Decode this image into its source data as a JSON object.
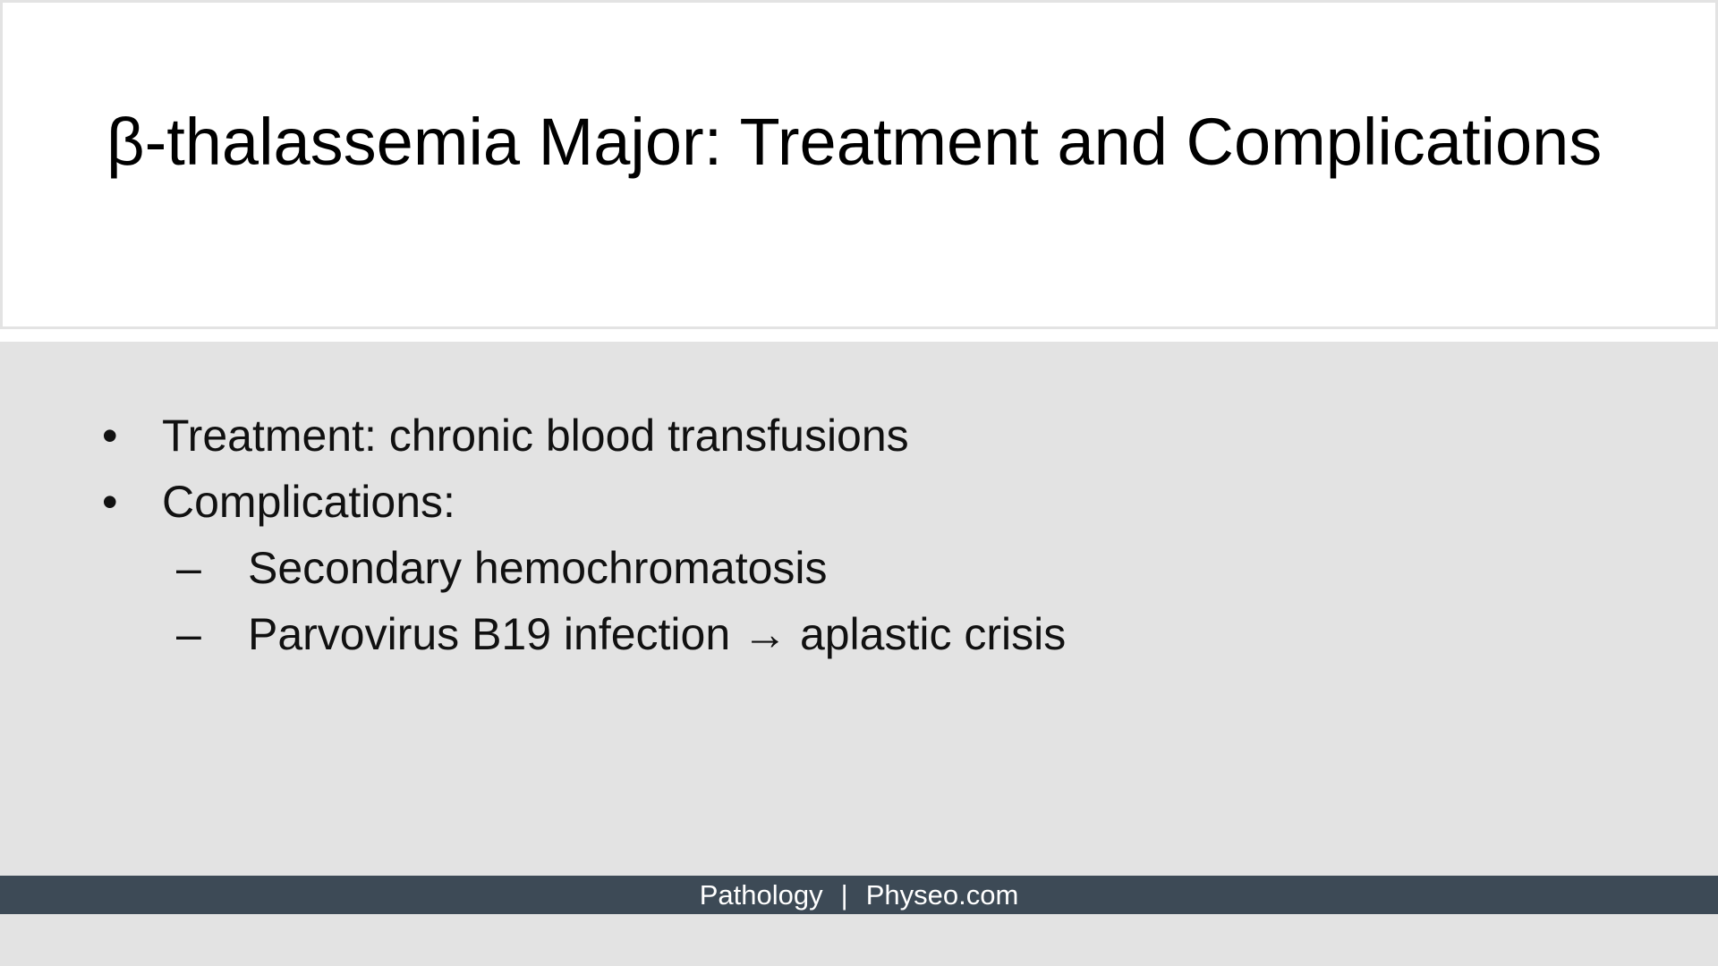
{
  "slide": {
    "title": "β-thalassemia Major: Treatment and Complications",
    "bullets": [
      {
        "marker": "•",
        "text": "Treatment: chronic blood transfusions"
      },
      {
        "marker": "•",
        "text": "Complications:"
      }
    ],
    "sub_bullets": [
      {
        "marker": "–",
        "text": "Secondary hemochromatosis"
      },
      {
        "marker": "–",
        "text": "Parvovirus B19 infection → aplastic crisis"
      }
    ]
  },
  "footer": {
    "left": "Pathology",
    "separator": "|",
    "right": "Physeo.com"
  },
  "colors": {
    "title_bg": "#ffffff",
    "content_bg": "#e3e3e3",
    "footer_bg": "#3d4a56",
    "footer_text": "#ffffff"
  }
}
